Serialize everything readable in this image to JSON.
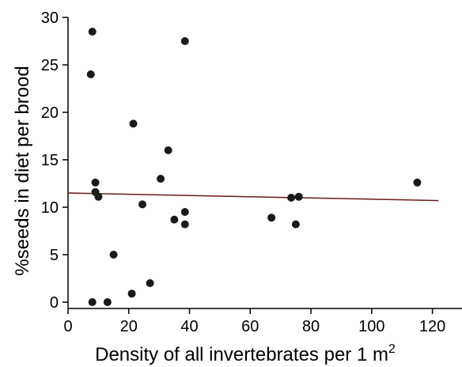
{
  "chart_data": {
    "type": "scatter",
    "xlabel": "Density of all invertebrates per 1 m",
    "xlabel_superscript": "2",
    "ylabel": "%seeds in diet per brood",
    "xlim": [
      0,
      130
    ],
    "ylim": [
      0,
      30
    ],
    "x_ticks": [
      "0",
      "20",
      "40",
      "60",
      "80",
      "100",
      "120"
    ],
    "y_ticks": [
      "0",
      "5",
      "10",
      "15",
      "20",
      "25",
      "30"
    ],
    "grid": false,
    "legend": "none",
    "point_color": "#1a1a1a",
    "trendline_color": "#6b1a1a",
    "points": [
      {
        "x": 7.5,
        "y": 24
      },
      {
        "x": 8.0,
        "y": 28.5
      },
      {
        "x": 8.0,
        "y": 0
      },
      {
        "x": 9.0,
        "y": 12.6
      },
      {
        "x": 9.0,
        "y": 11.6
      },
      {
        "x": 10.0,
        "y": 11.1
      },
      {
        "x": 13.0,
        "y": 0
      },
      {
        "x": 15.0,
        "y": 5
      },
      {
        "x": 21.0,
        "y": 0.9
      },
      {
        "x": 21.5,
        "y": 18.8
      },
      {
        "x": 24.5,
        "y": 10.3
      },
      {
        "x": 27.0,
        "y": 2
      },
      {
        "x": 30.5,
        "y": 13
      },
      {
        "x": 33.0,
        "y": 16
      },
      {
        "x": 35.0,
        "y": 8.7
      },
      {
        "x": 38.5,
        "y": 27.5
      },
      {
        "x": 38.5,
        "y": 9.5
      },
      {
        "x": 38.5,
        "y": 8.2
      },
      {
        "x": 67.0,
        "y": 8.9
      },
      {
        "x": 73.5,
        "y": 11
      },
      {
        "x": 75.0,
        "y": 8.2
      },
      {
        "x": 76.0,
        "y": 11.1
      },
      {
        "x": 115.0,
        "y": 12.6
      }
    ],
    "trendline": {
      "x": [
        0,
        122
      ],
      "y": [
        11.5,
        10.7
      ]
    }
  }
}
